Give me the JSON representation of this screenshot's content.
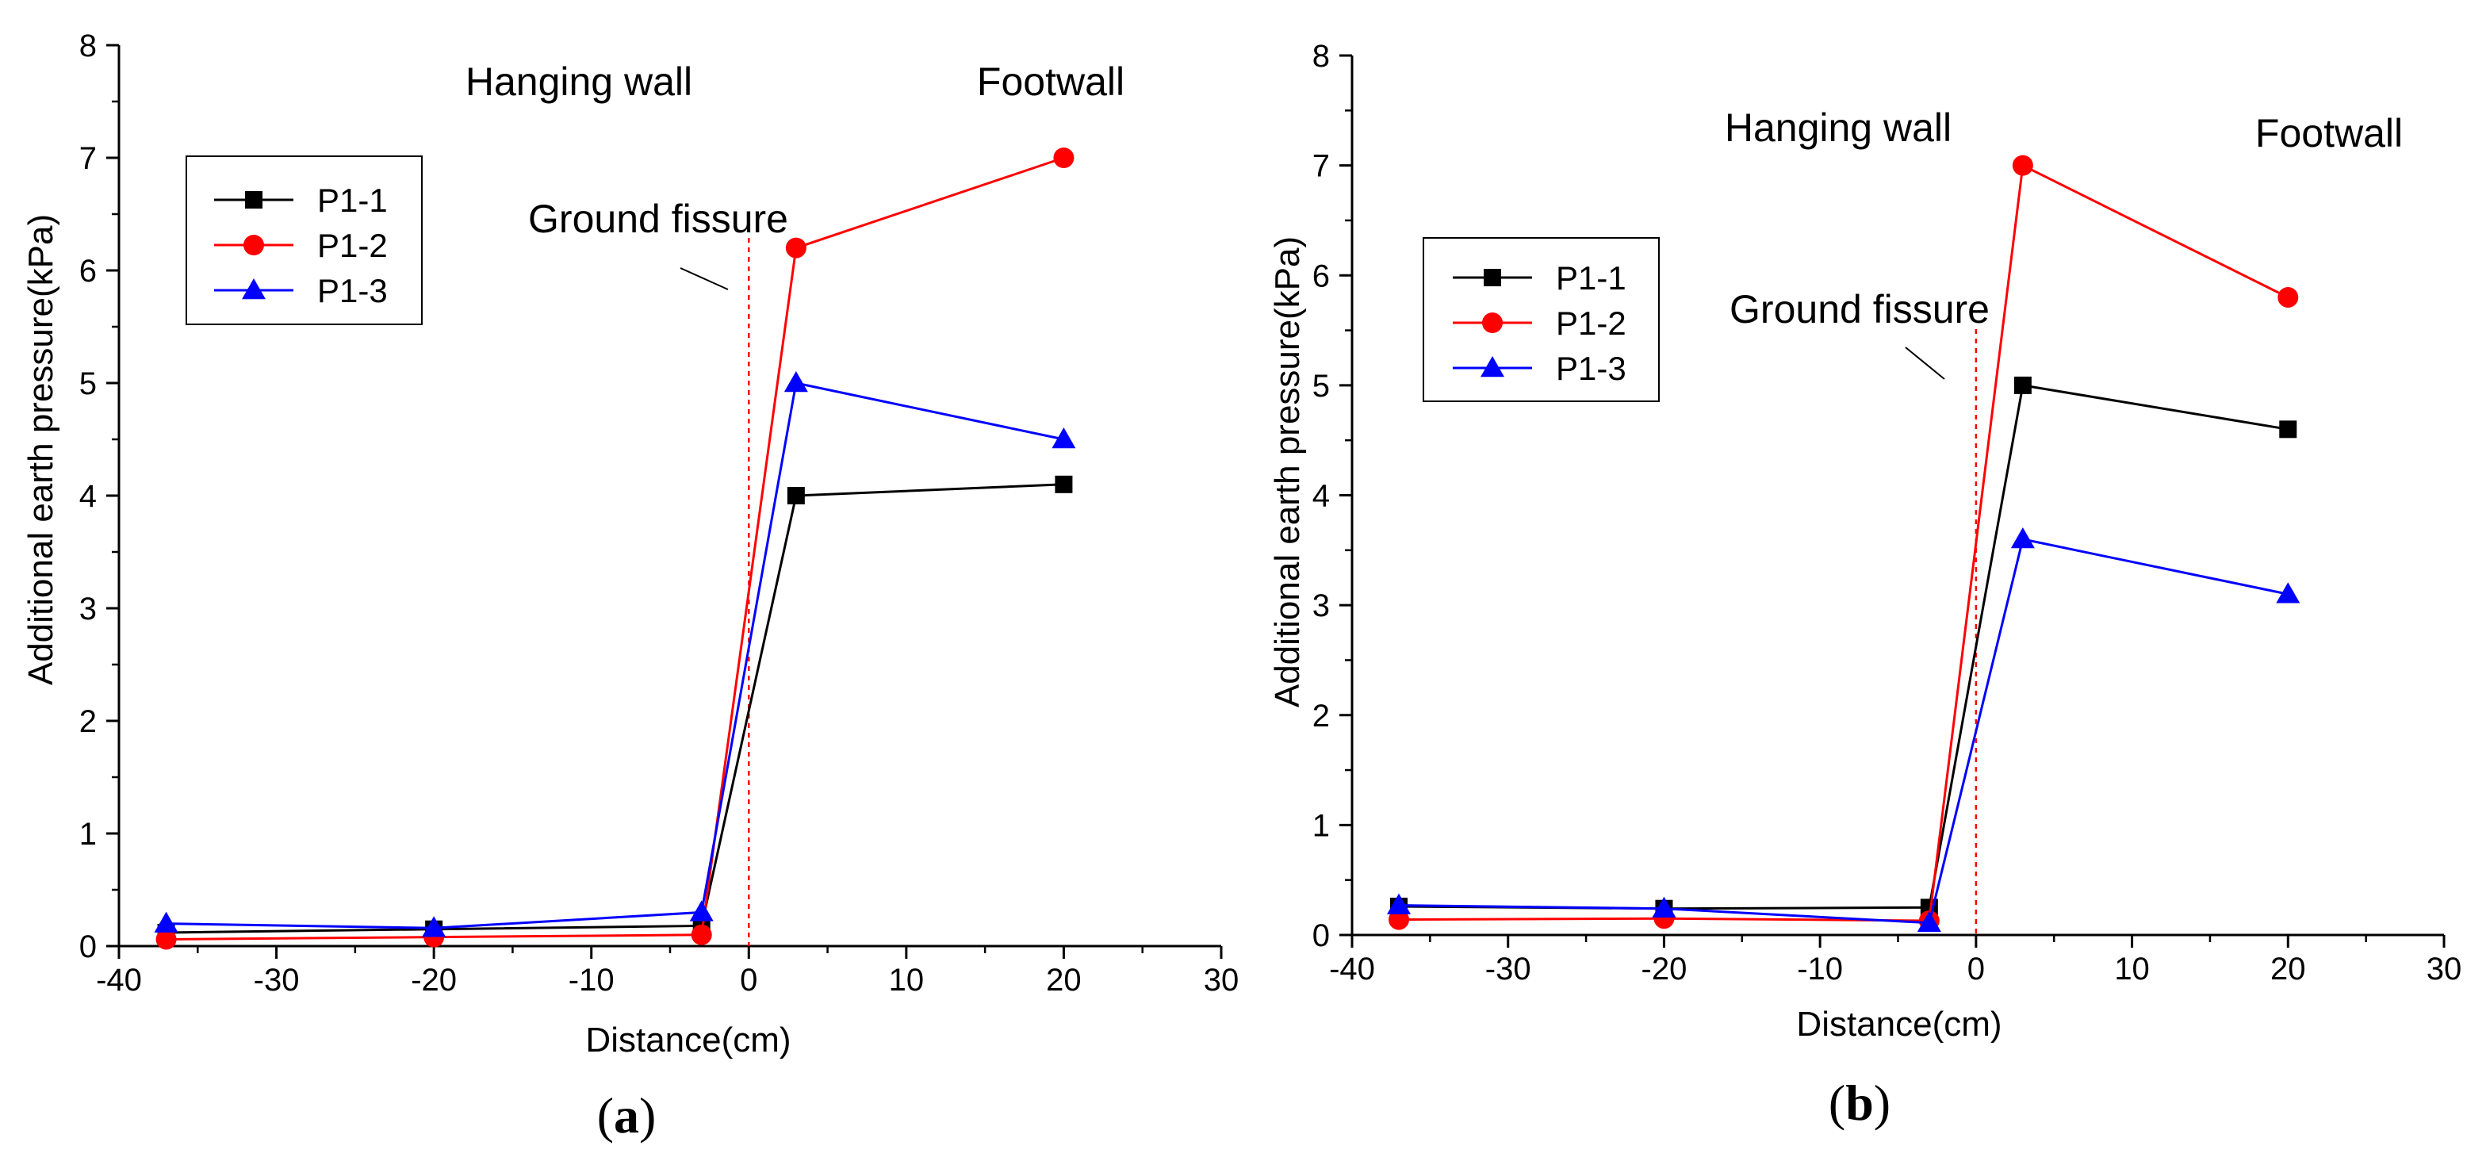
{
  "chart_data": [
    {
      "type": "line",
      "panel_label": "(a)",
      "panel_letter": "a",
      "xlabel": "Distance(cm)",
      "ylabel": "Additional earth pressure(kPa)",
      "xlim": [
        -40,
        30
      ],
      "ylim": [
        0,
        8
      ],
      "xticks": [
        -40,
        -30,
        -20,
        -10,
        0,
        10,
        20,
        30
      ],
      "yticks": [
        0,
        1,
        2,
        3,
        4,
        5,
        6,
        7,
        8
      ],
      "grid": false,
      "legend_position": "top-left",
      "x": [
        -37,
        -20,
        -3,
        3,
        20
      ],
      "series": [
        {
          "name": "P1-1",
          "color": "#000000",
          "marker": "square",
          "values": [
            0.12,
            0.15,
            0.18,
            4.0,
            4.1
          ]
        },
        {
          "name": "P1-2",
          "color": "#ff0000",
          "marker": "circle",
          "values": [
            0.06,
            0.08,
            0.1,
            6.2,
            7.0
          ]
        },
        {
          "name": "P1-3",
          "color": "#0000ff",
          "marker": "triangle",
          "values": [
            0.2,
            0.16,
            0.3,
            5.0,
            4.5
          ]
        }
      ],
      "annotations": {
        "hanging_wall": "Hanging wall",
        "footwall": "Footwall",
        "fissure": "Ground fissure"
      },
      "fissure_x": 0,
      "fissure_color": "#ff0000"
    },
    {
      "type": "line",
      "panel_label": "(b)",
      "panel_letter": "b",
      "xlabel": "Distance(cm)",
      "ylabel": "Additional earth pressure(kPa)",
      "xlim": [
        -40,
        30
      ],
      "ylim": [
        0,
        8
      ],
      "xticks": [
        -40,
        -30,
        -20,
        -10,
        0,
        10,
        20,
        30
      ],
      "yticks": [
        0,
        1,
        2,
        3,
        4,
        5,
        6,
        7,
        8
      ],
      "grid": false,
      "legend_position": "upper-left",
      "x": [
        -37,
        -20,
        -3,
        3,
        20
      ],
      "series": [
        {
          "name": "P1-1",
          "color": "#000000",
          "marker": "square",
          "values": [
            0.26,
            0.24,
            0.25,
            5.0,
            4.6
          ]
        },
        {
          "name": "P1-2",
          "color": "#ff0000",
          "marker": "circle",
          "values": [
            0.14,
            0.15,
            0.13,
            7.0,
            5.8
          ]
        },
        {
          "name": "P1-3",
          "color": "#0000ff",
          "marker": "triangle",
          "values": [
            0.27,
            0.24,
            0.11,
            3.6,
            3.1
          ]
        }
      ],
      "annotations": {
        "hanging_wall": "Hanging wall",
        "footwall": "Footwall",
        "fissure": "Ground fissure"
      },
      "fissure_x": 0,
      "fissure_color": "#ff0000"
    }
  ]
}
